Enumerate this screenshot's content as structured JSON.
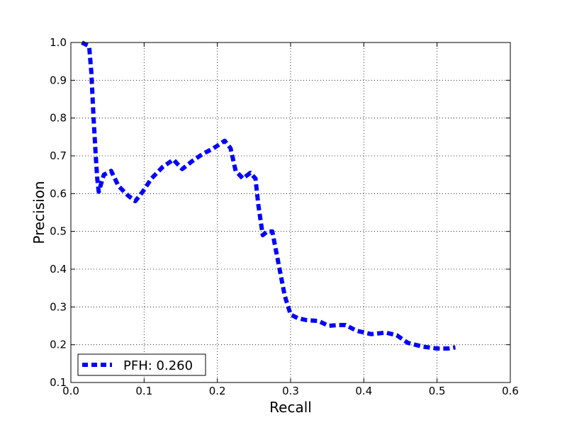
{
  "chart_data": {
    "type": "line",
    "title": "",
    "xlabel": "Recall",
    "ylabel": "Precision",
    "xlim": [
      0.0,
      0.6
    ],
    "ylim": [
      0.1,
      1.0
    ],
    "xticks": [
      0.0,
      0.1,
      0.2,
      0.3,
      0.4,
      0.5,
      0.6
    ],
    "yticks": [
      0.1,
      0.2,
      0.3,
      0.4,
      0.5,
      0.6,
      0.7,
      0.8,
      0.9,
      1.0
    ],
    "xtick_labels": [
      "0.0",
      "0.1",
      "0.2",
      "0.3",
      "0.4",
      "0.5",
      "0.6"
    ],
    "ytick_labels": [
      "0.1",
      "0.2",
      "0.3",
      "0.4",
      "0.5",
      "0.6",
      "0.7",
      "0.8",
      "0.9",
      "1.0"
    ],
    "grid": true,
    "legend_position": "lower-left",
    "series": [
      {
        "name": "PFH: 0.260",
        "color": "#0000ff",
        "line_style": "dashed",
        "x": [
          0.015,
          0.025,
          0.028,
          0.031,
          0.034,
          0.036,
          0.038,
          0.045,
          0.055,
          0.065,
          0.078,
          0.088,
          0.098,
          0.11,
          0.125,
          0.14,
          0.152,
          0.165,
          0.18,
          0.195,
          0.21,
          0.218,
          0.225,
          0.235,
          0.245,
          0.252,
          0.256,
          0.262,
          0.268,
          0.275,
          0.28,
          0.286,
          0.292,
          0.3,
          0.31,
          0.322,
          0.338,
          0.352,
          0.365,
          0.375,
          0.39,
          0.41,
          0.43,
          0.445,
          0.46,
          0.48,
          0.5,
          0.515,
          0.525
        ],
        "y": [
          1.0,
          0.99,
          0.92,
          0.8,
          0.7,
          0.64,
          0.605,
          0.65,
          0.66,
          0.62,
          0.595,
          0.58,
          0.605,
          0.64,
          0.67,
          0.69,
          0.665,
          0.685,
          0.705,
          0.72,
          0.74,
          0.72,
          0.66,
          0.64,
          0.655,
          0.64,
          0.57,
          0.49,
          0.5,
          0.5,
          0.45,
          0.39,
          0.33,
          0.28,
          0.27,
          0.265,
          0.263,
          0.25,
          0.252,
          0.252,
          0.237,
          0.228,
          0.232,
          0.225,
          0.205,
          0.195,
          0.19,
          0.19,
          0.193
        ]
      }
    ]
  }
}
